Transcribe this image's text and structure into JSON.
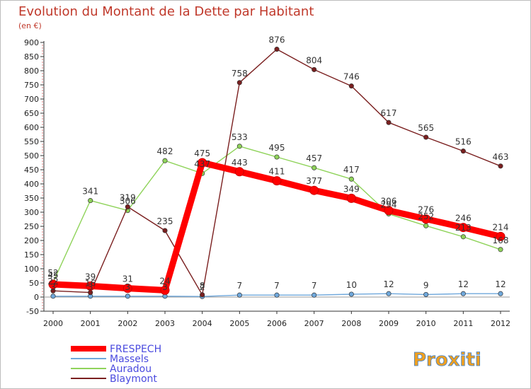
{
  "chart_data": {
    "type": "line",
    "title": "Evolution du Montant de la Dette par Habitant",
    "subtitle": "(en €)",
    "x": [
      "2000",
      "2001",
      "2002",
      "2003",
      "2004",
      "2005",
      "2006",
      "2007",
      "2008",
      "2009",
      "2010",
      "2011",
      "2012"
    ],
    "ylim": [
      -50,
      900
    ],
    "yticks": [
      -50,
      0,
      50,
      100,
      150,
      200,
      250,
      300,
      350,
      400,
      450,
      500,
      550,
      600,
      650,
      700,
      750,
      800,
      850,
      900
    ],
    "grid": false,
    "legend_position": "bottom-left",
    "series": [
      {
        "name": "FRESPECH",
        "color": "#ff0000",
        "values": [
          45,
          39,
          31,
          24,
          475,
          443,
          411,
          377,
          349,
          306,
          276,
          246,
          214
        ],
        "labels": [
          "45",
          "39",
          "31",
          "24",
          "475",
          "443",
          "411",
          "377",
          "349",
          "306",
          "276",
          "246",
          "214"
        ]
      },
      {
        "name": "Massels",
        "color": "#6fa8dc",
        "values": [
          3,
          3,
          3,
          3,
          2,
          7,
          7,
          7,
          10,
          12,
          9,
          12,
          12
        ],
        "labels": [
          "3",
          "3",
          "3",
          "3",
          "2",
          "7",
          "7",
          "7",
          "10",
          "12",
          "9",
          "12",
          "12"
        ]
      },
      {
        "name": "Auradou",
        "color": "#8fd35a",
        "values": [
          52,
          341,
          306,
          482,
          437,
          533,
          495,
          457,
          417,
          294,
          252,
          213,
          168
        ],
        "labels": [
          "52",
          "341",
          "306",
          "482",
          "437",
          "533",
          "495",
          "457",
          "417",
          "294",
          "252",
          "213",
          "168"
        ]
      },
      {
        "name": "Blaymont",
        "color": "#7a1f1f",
        "values": [
          22,
          16,
          319,
          235,
          8,
          758,
          876,
          804,
          746,
          617,
          565,
          516,
          463
        ],
        "labels": [
          "22",
          "16",
          "319",
          "235",
          "8",
          "758",
          "876",
          "804",
          "746",
          "617",
          "565",
          "516",
          "463"
        ]
      }
    ]
  },
  "logo": {
    "text": "Proxiti"
  }
}
